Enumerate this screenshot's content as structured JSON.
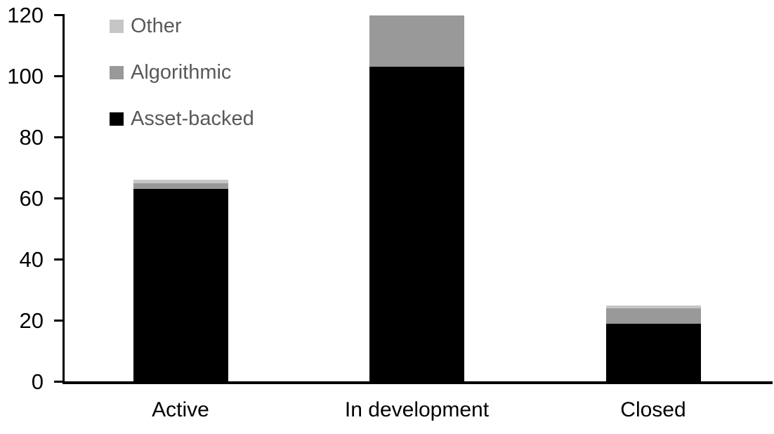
{
  "chart_data": {
    "type": "bar",
    "stacked": true,
    "title": "",
    "xlabel": "",
    "ylabel": "",
    "categories": [
      "Active",
      "In development",
      "Closed"
    ],
    "series": [
      {
        "name": "Asset-backed",
        "color": "#000000",
        "values": [
          63,
          103,
          19
        ]
      },
      {
        "name": "Algorithmic",
        "color": "#999999",
        "values": [
          2,
          17,
          5
        ]
      },
      {
        "name": "Other",
        "color": "#c6c6c6",
        "values": [
          1,
          0,
          1
        ]
      }
    ],
    "yticks": [
      0,
      20,
      40,
      60,
      80,
      100,
      120
    ],
    "ylim": [
      0,
      120
    ],
    "grid": false,
    "legend": {
      "position": "top-left",
      "order": [
        "Other",
        "Algorithmic",
        "Asset-backed"
      ]
    },
    "colors": {
      "axis": "#000000",
      "tick_label": "#000000",
      "category_label": "#000000",
      "legend_text": "#595959"
    }
  }
}
